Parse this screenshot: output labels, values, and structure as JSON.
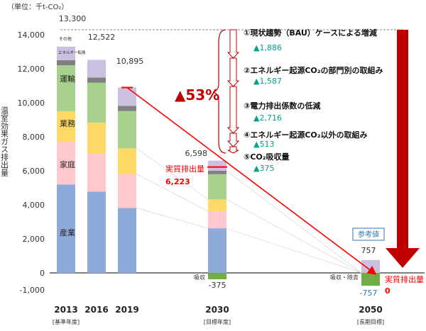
{
  "chart_data": {
    "type": "bar",
    "unit_label": "（単位：千t-CO₂）",
    "ylabel": "温室効果ガス排出量",
    "ylim": [
      -1000,
      14000
    ],
    "yticks": [
      "-1,000",
      "0",
      "2,000",
      "4,000",
      "6,000",
      "8,000",
      "10,000",
      "12,000",
      "14,000"
    ],
    "categories": [
      {
        "year": "2013",
        "sub": "[基準年度]"
      },
      {
        "year": "2016",
        "sub": ""
      },
      {
        "year": "2019",
        "sub": ""
      },
      {
        "year": "2030",
        "sub": "[目標年度]"
      },
      {
        "year": "2050",
        "sub": "[長期目標]"
      }
    ],
    "series": [
      {
        "name": "産業",
        "color": "#8eaadb",
        "values": [
          5200,
          4780,
          3820,
          2620,
          null
        ]
      },
      {
        "name": "家庭",
        "color": "#ffc7ce",
        "values": [
          2500,
          2250,
          2000,
          1000,
          null
        ]
      },
      {
        "name": "業務",
        "color": "#ffd966",
        "values": [
          1800,
          1800,
          1500,
          700,
          null
        ]
      },
      {
        "name": "運輸",
        "color": "#a9d18e",
        "values": [
          2700,
          2350,
          2200,
          1480,
          null
        ]
      },
      {
        "name": "エネルギー転換",
        "color": "#7f7f7f",
        "values": [
          300,
          300,
          300,
          200,
          null
        ]
      },
      {
        "name": "その他",
        "color": "#cbc0e0",
        "values": [
          800,
          1042,
          1075,
          598,
          757
        ]
      },
      {
        "name": "吸収",
        "color": "#70ad47",
        "values": [
          null,
          null,
          null,
          -375,
          -757
        ]
      }
    ],
    "bar_labels": {
      "series_labels": [
        "その他",
        "エネルギー転換",
        "運輸",
        "業務",
        "家庭",
        "産業"
      ],
      "sink_2030": "吸収",
      "sink_2050": "吸収・除去"
    },
    "totals": [
      "13,300",
      "12,522",
      "10,895",
      "6,598",
      "757"
    ],
    "sinks": [
      "-375",
      "-757"
    ],
    "net": {
      "label": "実質排出量",
      "value_2030": "6,223",
      "value_2050": "0",
      "series": [
        10895,
        6223,
        0
      ]
    },
    "reference_label": "参考値",
    "reduction_pct": "▲53%",
    "annotations": [
      {
        "circled": "①",
        "label": "現状趨勢（BAU）ケースによる増減",
        "value": "▲1,886"
      },
      {
        "circled": "②",
        "label": "エネルギー起源CO₂の部門別の取組み",
        "value": "▲1,587"
      },
      {
        "circled": "③",
        "label": "電力排出係数の低減",
        "value": "▲2,716"
      },
      {
        "circled": "④",
        "label": "エネルギー起源CO₂以外の取組み",
        "value": "▲513"
      },
      {
        "circled": "⑤",
        "label": "CO₂吸収量",
        "value": "▲375"
      }
    ],
    "colors": {
      "net": "#ff0000",
      "arrow": "#c00000",
      "teal": "#00a08a",
      "reference_box": "#2e75b6"
    }
  }
}
